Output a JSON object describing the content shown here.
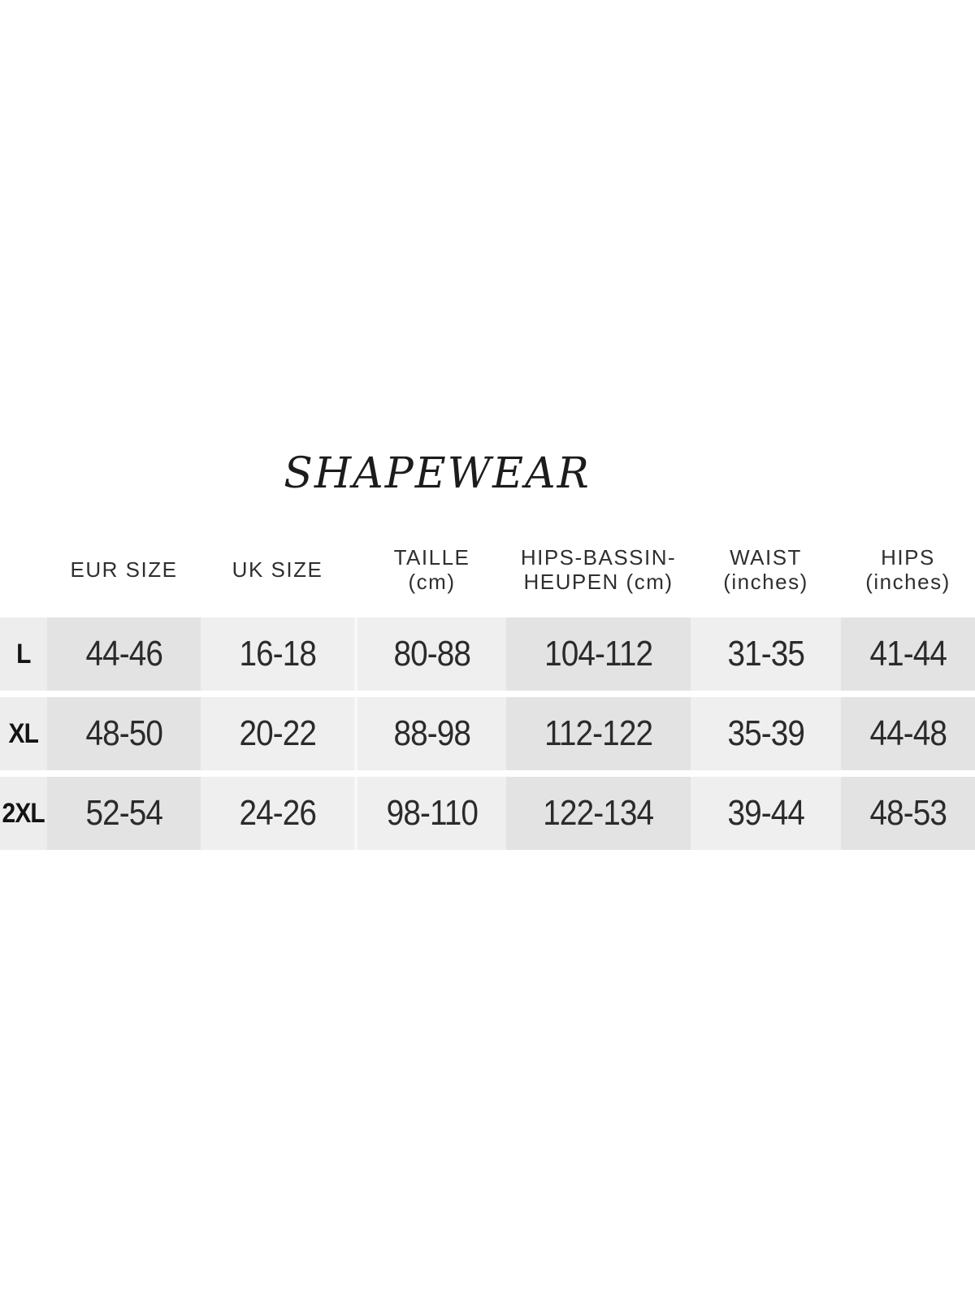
{
  "title": "SHAPEWEAR",
  "chart_data": {
    "type": "table",
    "columns": [
      {
        "label": "EUR SIZE",
        "sub": ""
      },
      {
        "label": "UK SIZE",
        "sub": ""
      },
      {
        "label": "TAILLE",
        "sub": "(cm)"
      },
      {
        "label": "HIPS-BASSIN-",
        "sub": "HEUPEN (cm)"
      },
      {
        "label": "WAIST",
        "sub": "(inches)"
      },
      {
        "label": "HIPS",
        "sub": "(inches)"
      }
    ],
    "rows": [
      {
        "size": "L",
        "eur": "44-46",
        "uk": "16-18",
        "taille_cm": "80-88",
        "hips_cm": "104-112",
        "waist_in": "31-35",
        "hips_in": "41-44"
      },
      {
        "size": "XL",
        "eur": "48-50",
        "uk": "20-22",
        "taille_cm": "88-98",
        "hips_cm": "112-122",
        "waist_in": "35-39",
        "hips_in": "44-48"
      },
      {
        "size": "2XL",
        "eur": "52-54",
        "uk": "24-26",
        "taille_cm": "98-110",
        "hips_cm": "122-134",
        "waist_in": "39-44",
        "hips_in": "48-53"
      }
    ],
    "layout": {
      "row_labels_column_first": true,
      "striped_columns": true
    }
  },
  "colors": {
    "page_bg": "#ffffff",
    "stripe_dark": "#e3e3e3",
    "stripe_light": "#efefef",
    "label_column_bg": "#ededed",
    "column_separator": "#f8f8f8",
    "text": "#2b2b2b",
    "title_text": "#1c1c1c"
  }
}
